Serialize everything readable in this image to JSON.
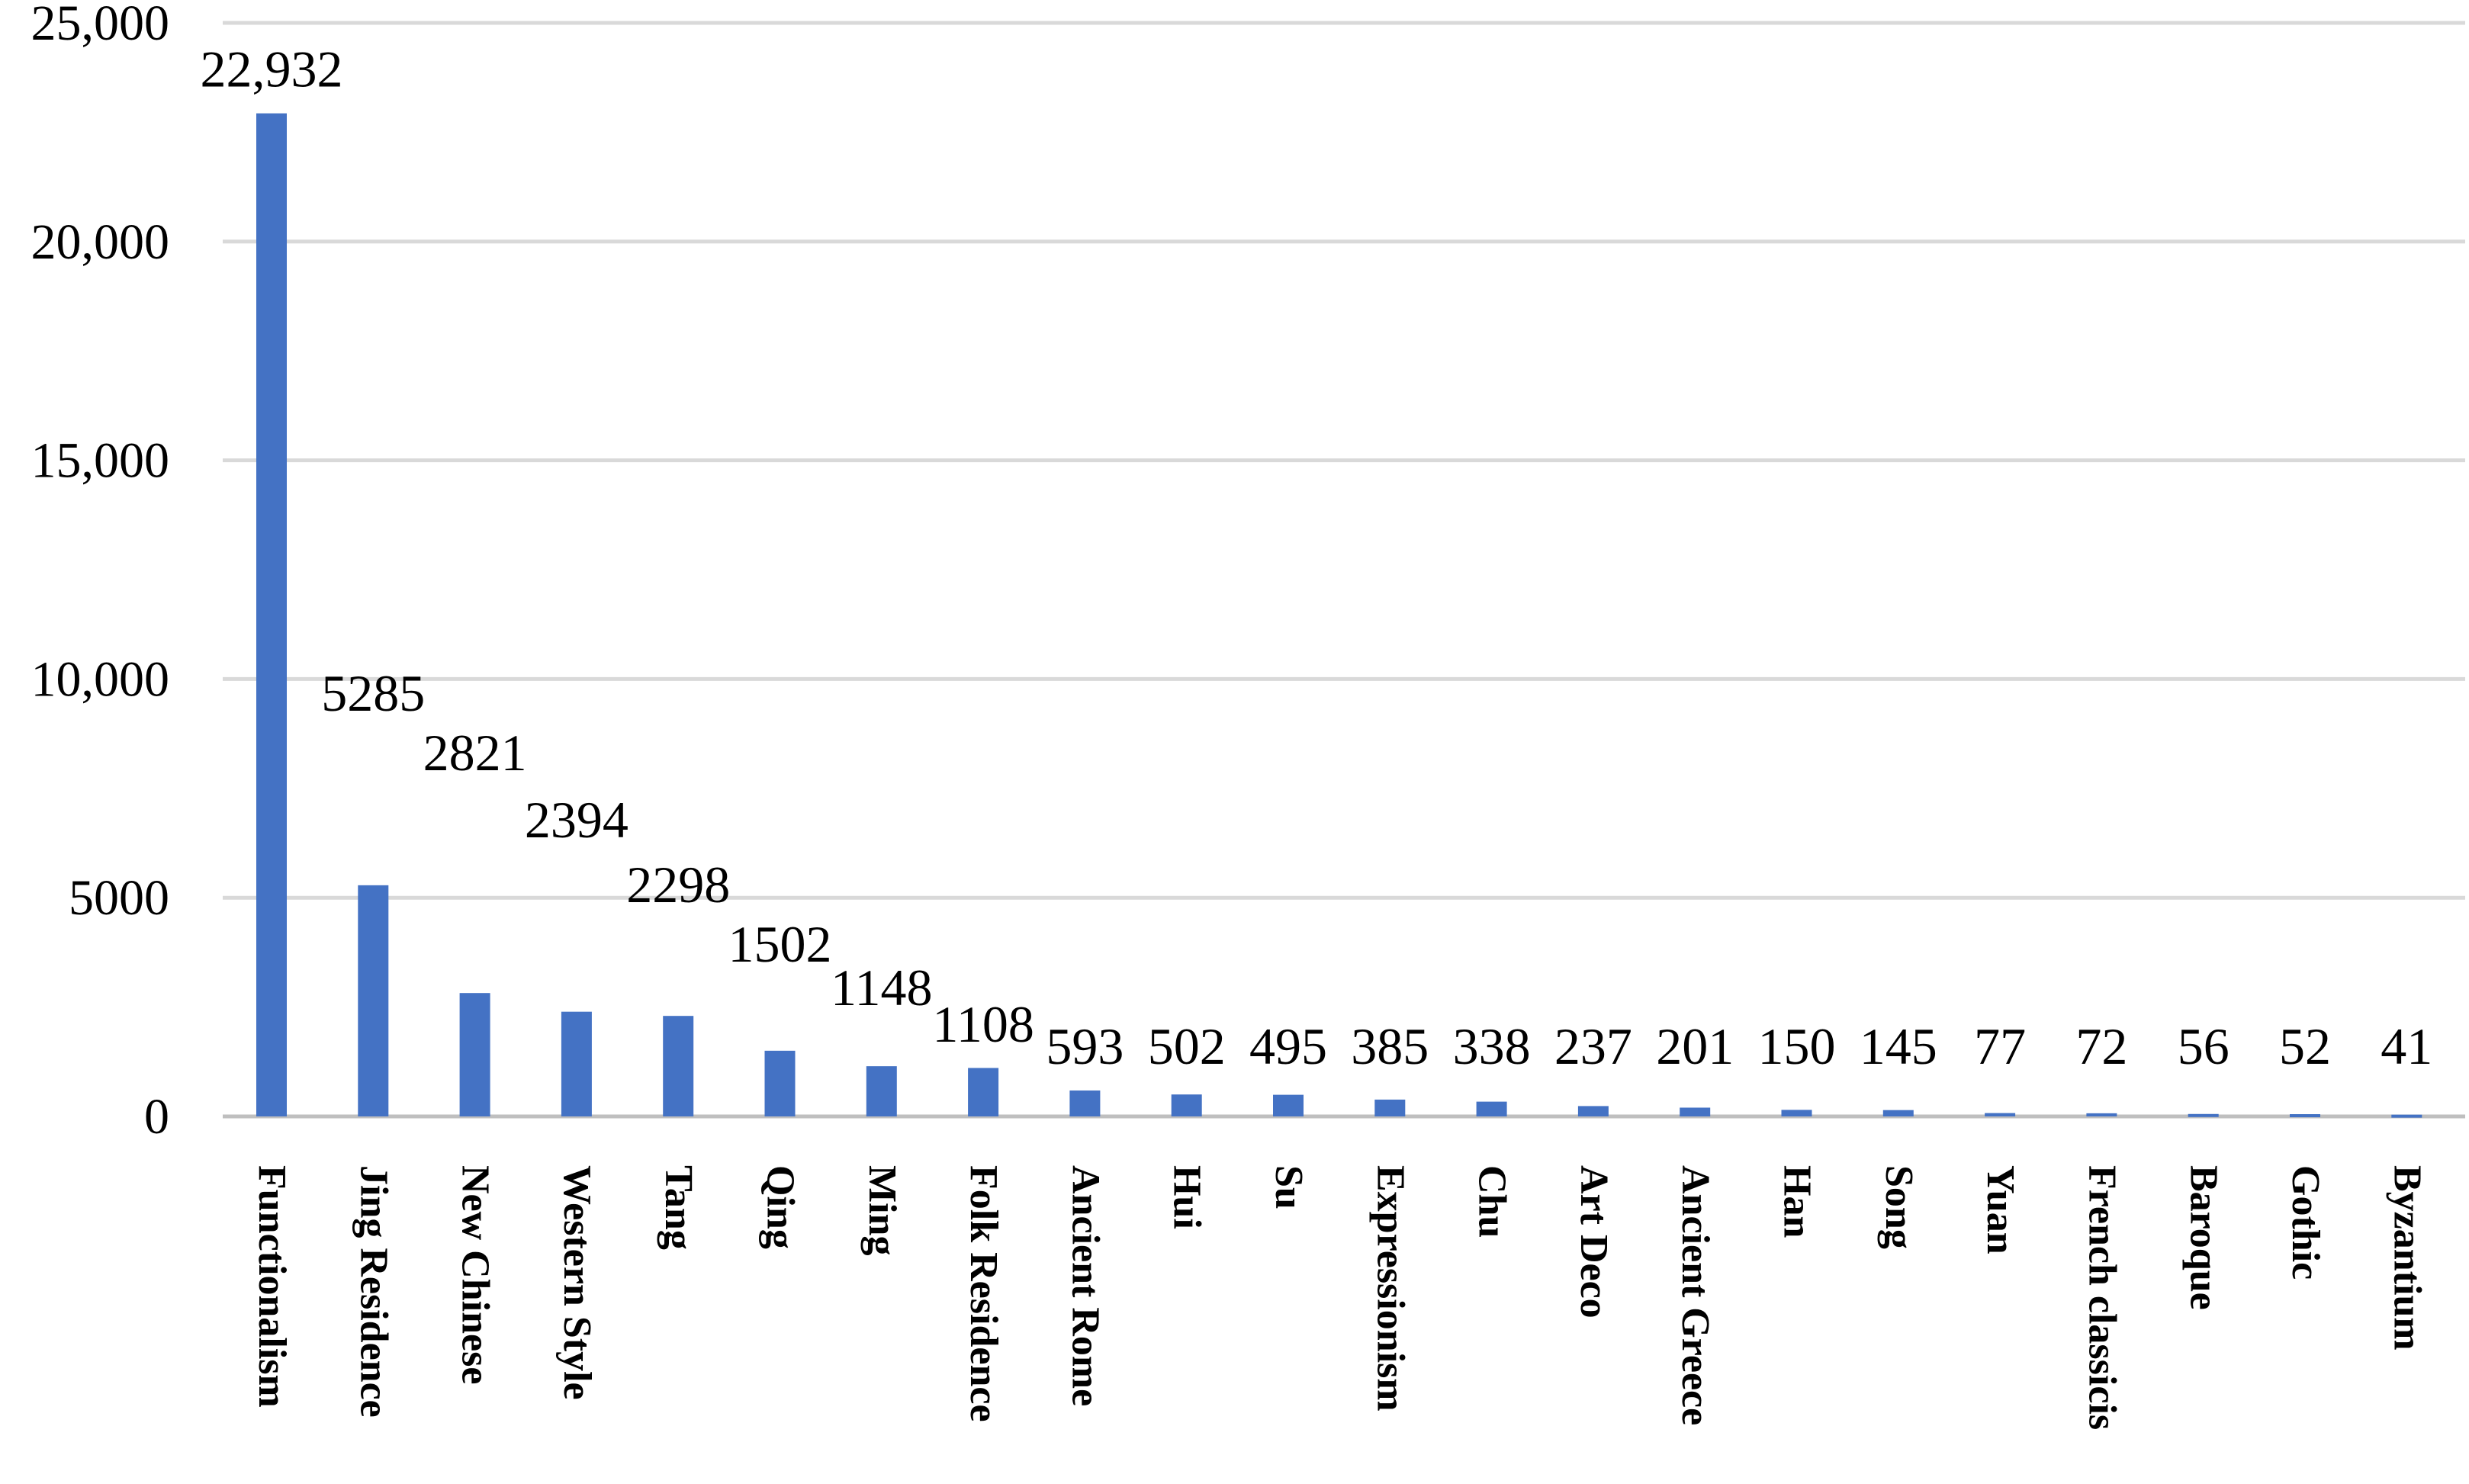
{
  "chart_data": {
    "type": "bar",
    "title": "",
    "xlabel": "",
    "ylabel": "",
    "ylim": [
      0,
      25000
    ],
    "yticks": [
      {
        "value": 0,
        "label": "0"
      },
      {
        "value": 5000,
        "label": "5000"
      },
      {
        "value": 10000,
        "label": "10,000"
      },
      {
        "value": 15000,
        "label": "15,000"
      },
      {
        "value": 20000,
        "label": "20,000"
      },
      {
        "value": 25000,
        "label": "25,000"
      }
    ],
    "grid": true,
    "legend": "none",
    "bar_color": "#4472c4",
    "categories": [
      "Functionalism",
      "Jing Residence",
      "New Chinese",
      "Western Style",
      "Tang",
      "Qing",
      "Ming",
      "Folk Residence",
      "Ancient Rome",
      "Hui",
      "Su",
      "Expressionism",
      "Chu",
      "Art Deco",
      "Ancient Greece",
      "Han",
      "Song",
      "Yuan",
      "French classicis",
      "Baroque",
      "Gothic",
      "Byzantium"
    ],
    "values": [
      22932,
      5285,
      2821,
      2394,
      2298,
      1502,
      1148,
      1108,
      593,
      502,
      495,
      385,
      338,
      237,
      201,
      150,
      145,
      77,
      72,
      56,
      52,
      41
    ],
    "data_labels": [
      "22,932",
      "5285",
      "2821",
      "2394",
      "2298",
      "1502",
      "1148",
      "1108",
      "593",
      "502",
      "495",
      "385",
      "338",
      "237",
      "201",
      "150",
      "145",
      "77",
      "72",
      "56",
      "52",
      "41"
    ]
  }
}
